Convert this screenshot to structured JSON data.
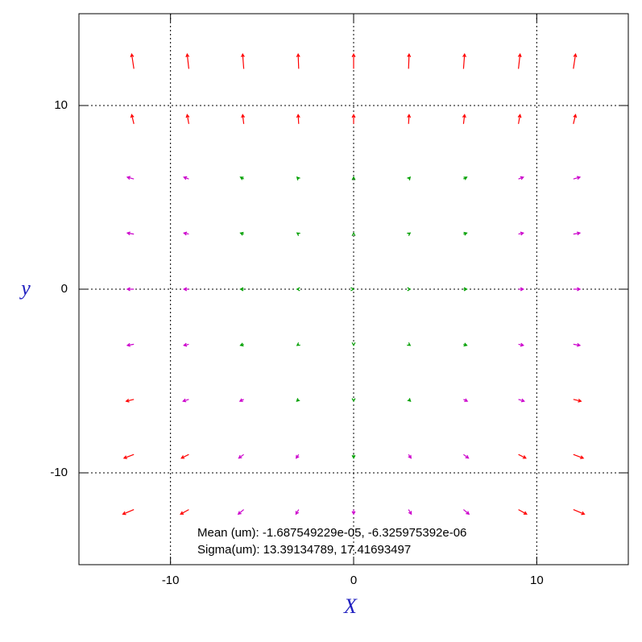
{
  "chart_data": {
    "type": "quiver",
    "xlabel": "X",
    "ylabel": "y",
    "annotations": [
      "Mean (um): -1.687549229e-05, -6.325975392e-06",
      "Sigma(um): 13.39134789, 17.41693497"
    ],
    "xlim": [
      -15,
      15
    ],
    "ylim": [
      -15,
      15
    ],
    "xticks": [
      -10,
      0,
      10
    ],
    "yticks": [
      -10,
      0,
      10
    ],
    "grid": true,
    "series": [
      {
        "color": "#ff0000",
        "points": [
          [
            -12,
            12,
            -0.12,
            0.8
          ],
          [
            -9,
            12,
            -0.09,
            0.8
          ],
          [
            -6,
            12,
            -0.06,
            0.8
          ],
          [
            -3,
            12,
            -0.03,
            0.8
          ],
          [
            0,
            12,
            0,
            0.8
          ],
          [
            3,
            12,
            0.03,
            0.8
          ],
          [
            6,
            12,
            0.06,
            0.8
          ],
          [
            9,
            12,
            0.09,
            0.8
          ],
          [
            12,
            12,
            0.12,
            0.8
          ],
          [
            -12,
            9,
            -0.12,
            0.5
          ],
          [
            -9,
            9,
            -0.09,
            0.5
          ],
          [
            -6,
            9,
            -0.06,
            0.5
          ],
          [
            -3,
            9,
            -0.03,
            0.5
          ],
          [
            0,
            9,
            0,
            0.5
          ],
          [
            3,
            9,
            0.03,
            0.5
          ],
          [
            6,
            9,
            0.06,
            0.5
          ],
          [
            9,
            9,
            0.09,
            0.5
          ],
          [
            12,
            9,
            0.12,
            0.5
          ],
          [
            -12,
            -6,
            -0.42,
            -0.1
          ],
          [
            12,
            -6,
            0.42,
            -0.1
          ],
          [
            -12,
            -9,
            -0.54,
            -0.2
          ],
          [
            -9,
            -9,
            -0.405,
            -0.2
          ],
          [
            9,
            -9,
            0.405,
            -0.2
          ],
          [
            12,
            -9,
            0.54,
            -0.2
          ],
          [
            -12,
            -12,
            -0.6,
            -0.25
          ],
          [
            -9,
            -12,
            -0.45,
            -0.25
          ],
          [
            9,
            -12,
            0.45,
            -0.25
          ],
          [
            12,
            -12,
            0.6,
            -0.25
          ]
        ]
      },
      {
        "color": "#cc00cc",
        "points": [
          [
            -12,
            6,
            -0.36,
            0.1
          ],
          [
            -9,
            6,
            -0.27,
            0.1
          ],
          [
            9,
            6,
            0.27,
            0.1
          ],
          [
            12,
            6,
            0.36,
            0.1
          ],
          [
            -12,
            3,
            -0.36,
            0.06
          ],
          [
            -9,
            3,
            -0.27,
            0.06
          ],
          [
            9,
            3,
            0.27,
            0.06
          ],
          [
            12,
            3,
            0.36,
            0.06
          ],
          [
            -12,
            0,
            -0.36,
            0
          ],
          [
            -9,
            0,
            -0.27,
            0
          ],
          [
            9,
            0,
            0.27,
            0
          ],
          [
            12,
            0,
            0.36,
            0
          ],
          [
            -12,
            -3,
            -0.36,
            -0.06
          ],
          [
            -9,
            -3,
            -0.27,
            -0.06
          ],
          [
            9,
            -3,
            0.27,
            -0.06
          ],
          [
            12,
            -3,
            0.36,
            -0.06
          ],
          [
            -9,
            -6,
            -0.315,
            -0.1
          ],
          [
            -6,
            -6,
            -0.21,
            -0.1
          ],
          [
            6,
            -6,
            0.21,
            -0.1
          ],
          [
            9,
            -6,
            0.315,
            -0.1
          ],
          [
            -6,
            -9,
            -0.27,
            -0.2
          ],
          [
            -3,
            -9,
            -0.135,
            -0.2
          ],
          [
            3,
            -9,
            0.135,
            -0.2
          ],
          [
            6,
            -9,
            0.27,
            -0.2
          ],
          [
            -6,
            -12,
            -0.3,
            -0.25
          ],
          [
            -3,
            -12,
            -0.15,
            -0.25
          ],
          [
            0,
            -12,
            0,
            -0.25
          ],
          [
            3,
            -12,
            0.15,
            -0.25
          ],
          [
            6,
            -12,
            0.3,
            -0.25
          ]
        ]
      },
      {
        "color": "#00a000",
        "points": [
          [
            -6,
            6,
            -0.18,
            0.1
          ],
          [
            -3,
            6,
            -0.09,
            0.1
          ],
          [
            0,
            6,
            0,
            0.1
          ],
          [
            3,
            6,
            0.09,
            0.1
          ],
          [
            6,
            6,
            0.18,
            0.1
          ],
          [
            -6,
            3,
            -0.18,
            0.06
          ],
          [
            -3,
            3,
            -0.09,
            0.06
          ],
          [
            0,
            3,
            0,
            0.06
          ],
          [
            3,
            3,
            0.09,
            0.06
          ],
          [
            6,
            3,
            0.18,
            0.06
          ],
          [
            -6,
            0,
            -0.18,
            0
          ],
          [
            -3,
            0,
            -0.09,
            0
          ],
          [
            0,
            0,
            0,
            0
          ],
          [
            3,
            0,
            0.09,
            0
          ],
          [
            6,
            0,
            0.18,
            0
          ],
          [
            -6,
            -3,
            -0.18,
            -0.06
          ],
          [
            -3,
            -3,
            -0.09,
            -0.06
          ],
          [
            0,
            -3,
            0,
            -0.06
          ],
          [
            3,
            -3,
            0.09,
            -0.06
          ],
          [
            6,
            -3,
            0.18,
            -0.06
          ],
          [
            -3,
            -6,
            -0.105,
            -0.1
          ],
          [
            0,
            -6,
            0,
            -0.1
          ],
          [
            3,
            -6,
            0.105,
            -0.1
          ],
          [
            0,
            -9,
            0,
            -0.2
          ]
        ]
      }
    ]
  }
}
